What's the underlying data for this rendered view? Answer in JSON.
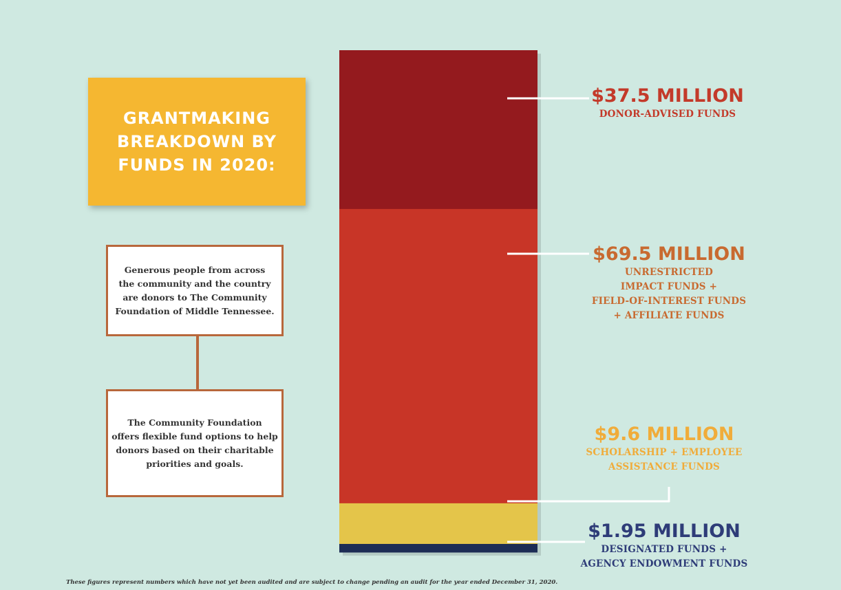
{
  "title": "GRANTMAKING\nBREAKDOWN BY\nFUNDS IN 2020:",
  "notes": [
    "Generous people from across\nthe community and the country\nare donors to The Community\nFoundation of Middle Tennessee.",
    "The Community Foundation\noffers flexible fund options to help\ndonors based on their charitable\npriorities and goals."
  ],
  "footnote": "These figures represent numbers which have not yet been audited and are subject to change pending an audit for the year ended December 31, 2020.",
  "chart_data": {
    "type": "bar",
    "stacked": true,
    "orientation": "vertical",
    "unit": "million USD",
    "series": [
      {
        "amount": "$37.5 MILLION",
        "label": "DONOR-ADVISED FUNDS",
        "value": 37.5,
        "color": "#941a1e",
        "text_color": "#c33a2a"
      },
      {
        "amount": "$69.5 MILLION",
        "label": "UNRESTRICTED\nIMPACT FUNDS +\nFIELD-OF-INTEREST FUNDS\n+ AFFILIATE FUNDS",
        "value": 69.5,
        "color": "#c83527",
        "text_color": "#c86a30"
      },
      {
        "amount": "$9.6 MILLION",
        "label": "SCHOLARSHIP + EMPLOYEE\nASSISTANCE FUNDS",
        "value": 9.6,
        "color": "#e4c54a",
        "text_color": "#f0ac3a"
      },
      {
        "amount": "$1.95 MILLION",
        "label": "DESIGNATED FUNDS +\nAGENCY ENDOWMENT FUNDS",
        "value": 1.95,
        "color": "#1d2d55",
        "text_color": "#2e3c78"
      }
    ]
  },
  "colors": {
    "background": "#cfe9e1",
    "title_card": "#f5b731",
    "note_border": "#b8673b",
    "leader_line": "#ffffff"
  }
}
